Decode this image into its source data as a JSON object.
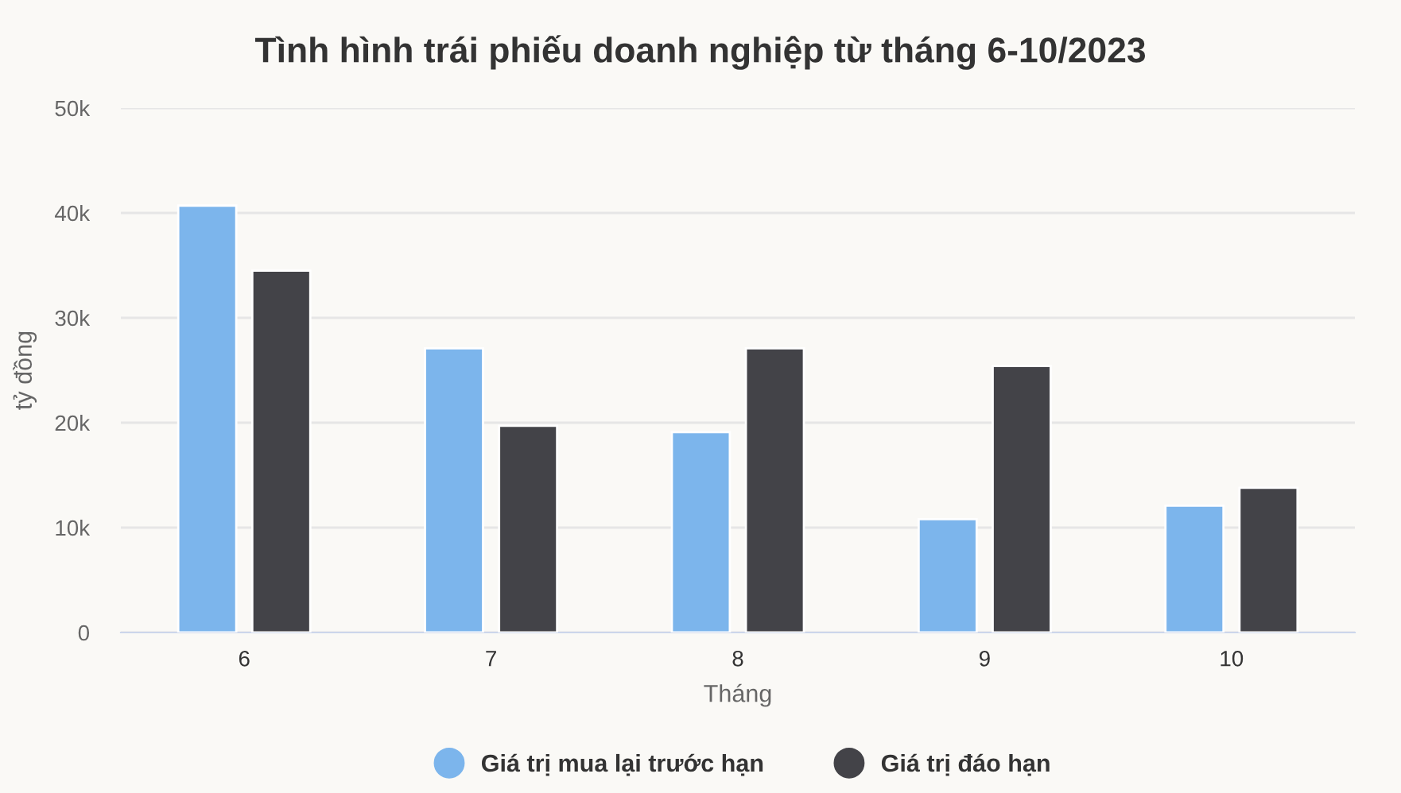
{
  "chart_data": {
    "type": "bar",
    "title": "Tình hình trái phiếu doanh nghiệp từ tháng 6-10/2023",
    "xlabel": "Tháng",
    "ylabel": "tỷ đồng",
    "categories": [
      "6",
      "7",
      "8",
      "9",
      "10"
    ],
    "series": [
      {
        "name": "Giá trị mua lại trước hạn",
        "color": "#7cb5ec",
        "values": [
          40700,
          27100,
          19100,
          10800,
          12100
        ]
      },
      {
        "name": "Giá trị đáo hạn",
        "color": "#434348",
        "values": [
          34500,
          19700,
          27100,
          25400,
          13800
        ]
      }
    ],
    "ylim": [
      0,
      50000
    ],
    "yticks": [
      0,
      {
        "value": 10000,
        "label": "10k"
      },
      {
        "value": 20000,
        "label": "20k"
      },
      {
        "value": 30000,
        "label": "30k"
      },
      {
        "value": 40000,
        "label": "40k"
      },
      {
        "value": 50000,
        "label": "50k"
      }
    ],
    "grid": "y",
    "legend": "bottom",
    "marker": "circle"
  }
}
